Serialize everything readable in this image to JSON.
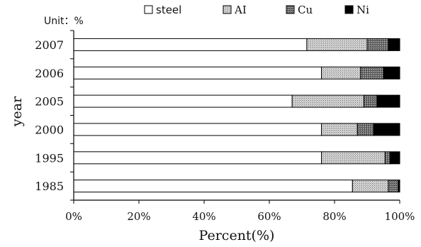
{
  "chart_data": {
    "type": "bar",
    "orientation": "horizontal",
    "stacked": true,
    "unit_label": "Unit：%",
    "xlabel": "Percent(%)",
    "ylabel": "year",
    "xlim": [
      0,
      100
    ],
    "x_ticks": [
      "0%",
      "20%",
      "40%",
      "60%",
      "80%",
      "100%"
    ],
    "categories": [
      "2007",
      "2006",
      "2005",
      "2000",
      "1995",
      "1985"
    ],
    "series": [
      {
        "name": "steel",
        "values": [
          71.5,
          76,
          67,
          76,
          76,
          85.5
        ],
        "color": "#ffffff",
        "pattern": "none"
      },
      {
        "name": "AI",
        "values": [
          18.5,
          12,
          22,
          11,
          19.5,
          11
        ],
        "color": "#c9c9c9",
        "pattern": "light"
      },
      {
        "name": "Cu",
        "values": [
          6.5,
          7,
          4,
          5,
          1.5,
          3
        ],
        "color": "#8a8a8a",
        "pattern": "dark"
      },
      {
        "name": "Ni",
        "values": [
          3.5,
          5,
          7,
          8,
          3,
          0.5
        ],
        "color": "#000000",
        "pattern": "solid"
      }
    ],
    "legend_position": "top",
    "grid": false
  }
}
